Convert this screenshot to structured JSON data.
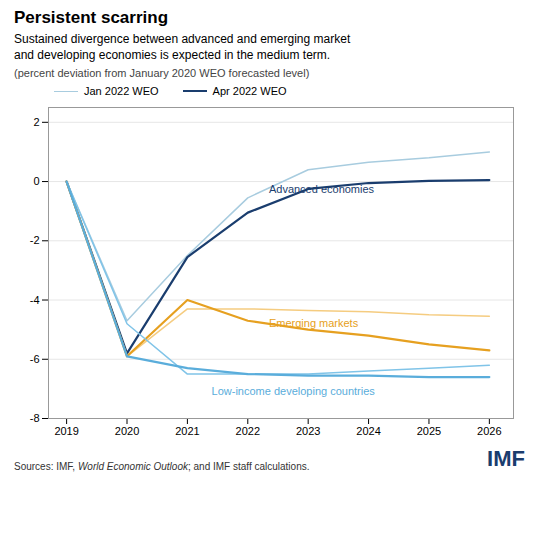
{
  "chart_data": {
    "type": "line",
    "title": "Persistent scarring",
    "subtitle": "Sustained divergence between advanced and emerging market\nand developing economies is expected in the medium term.",
    "note": "(percent deviation from January 2020 WEO forecasted level)",
    "source": [
      "Sources: IMF, ",
      "World Economic Outlook",
      "; and IMF staff calculations."
    ],
    "logo": "IMF",
    "logo_color": "#1a3d6e",
    "x": [
      2019,
      2020,
      2021,
      2022,
      2023,
      2024,
      2025,
      2026
    ],
    "series": [
      {
        "name": "Jan 2022 WEO",
        "color": "#a8ccdf",
        "values": [
          0.0,
          -4.7,
          -2.5,
          -0.55,
          0.4,
          0.65,
          0.8,
          1.0
        ]
      },
      {
        "name": "Apr 2022 WEO",
        "color": "#1a3d6e",
        "values": [
          0.0,
          -5.8,
          -2.55,
          -1.05,
          -0.25,
          -0.05,
          0.02,
          0.05
        ]
      },
      {
        "name": "Jan 2022 WEO",
        "color": "#f5cc80",
        "values": [
          0.0,
          -5.9,
          -4.3,
          -4.3,
          -4.35,
          -4.4,
          -4.5,
          -4.55
        ]
      },
      {
        "name": "Apr 2022 WEO",
        "color": "#e6a020",
        "values": [
          0.0,
          -5.9,
          -4.0,
          -4.7,
          -5.0,
          -5.2,
          -5.5,
          -5.7
        ]
      },
      {
        "name": "Jan 2022 WEO",
        "color": "#80c4e8",
        "values": [
          0.0,
          -4.8,
          -6.5,
          -6.5,
          -6.5,
          -6.4,
          -6.3,
          -6.2
        ]
      },
      {
        "name": "Apr 2022 WEO",
        "color": "#5aaddb",
        "values": [
          0.0,
          -5.9,
          -6.3,
          -6.5,
          -6.55,
          -6.55,
          -6.6,
          -6.6
        ]
      }
    ],
    "annotations": [
      {
        "text": "Advanced economies",
        "x": 2022.35,
        "y": -0.28,
        "color": "#1a3d6e"
      },
      {
        "text": "Emerging markets",
        "x": 2022.35,
        "y": -4.78,
        "color": "#e6a020"
      },
      {
        "text": "Low-income developing countries",
        "x": 2021.4,
        "y": -7.1,
        "color": "#5aaddb"
      }
    ],
    "xlim": [
      2018.7,
      2026.4
    ],
    "xticks": [
      2019,
      2020,
      2021,
      2022,
      2023,
      2024,
      2025,
      2026
    ],
    "ylim": [
      -8,
      2.5
    ],
    "yticks": [
      -8,
      -6,
      -4,
      -2,
      0,
      2
    ],
    "grid": true,
    "legend": "top"
  }
}
